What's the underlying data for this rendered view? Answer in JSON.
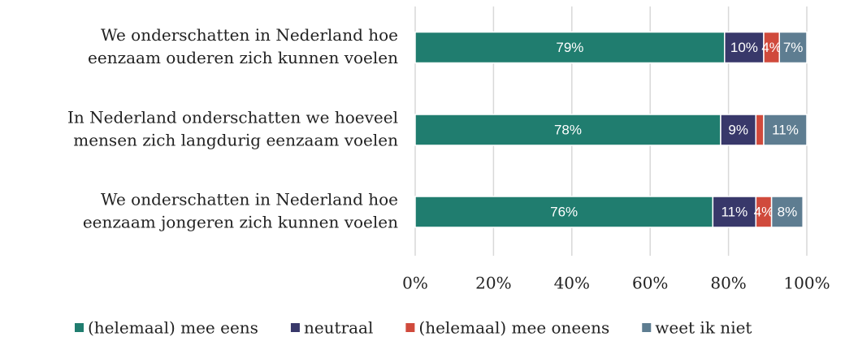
{
  "chart_data": {
    "type": "stacked-barh",
    "categories": [
      [
        "We onderschatten in Nederland hoe",
        "eenzaam ouderen zich kunnen voelen"
      ],
      [
        "In Nederland onderschatten we hoeveel",
        "mensen zich langdurig eenzaam voelen"
      ],
      [
        "We onderschatten in Nederland hoe",
        "eenzaam jongeren zich kunnen voelen"
      ]
    ],
    "series": [
      {
        "name": "(helemaal) mee eens",
        "color": "#207d6f",
        "values": [
          79,
          78,
          76
        ],
        "value_labels": [
          "79%",
          "78%",
          "76%"
        ]
      },
      {
        "name": "neutraal",
        "color": "#38386a",
        "values": [
          10,
          9,
          11
        ],
        "value_labels": [
          "10%",
          "9%",
          "11%"
        ]
      },
      {
        "name": "(helemaal) mee oneens",
        "color": "#d04a3c",
        "values": [
          4,
          2,
          4
        ],
        "value_labels": [
          "4%",
          null,
          "4%"
        ]
      },
      {
        "name": "weet ik niet",
        "color": "#5e7d91",
        "values": [
          7,
          11,
          8
        ],
        "value_labels": [
          "7%",
          "11%",
          "8%"
        ]
      }
    ],
    "xlim": [
      0,
      100
    ],
    "xticks": [
      {
        "value": 0,
        "label": "0%"
      },
      {
        "value": 20,
        "label": "20%"
      },
      {
        "value": 40,
        "label": "40%"
      },
      {
        "value": 60,
        "label": "60%"
      },
      {
        "value": 80,
        "label": "80%"
      },
      {
        "value": 100,
        "label": "100%"
      }
    ],
    "grid": true,
    "legend": "bottom"
  }
}
